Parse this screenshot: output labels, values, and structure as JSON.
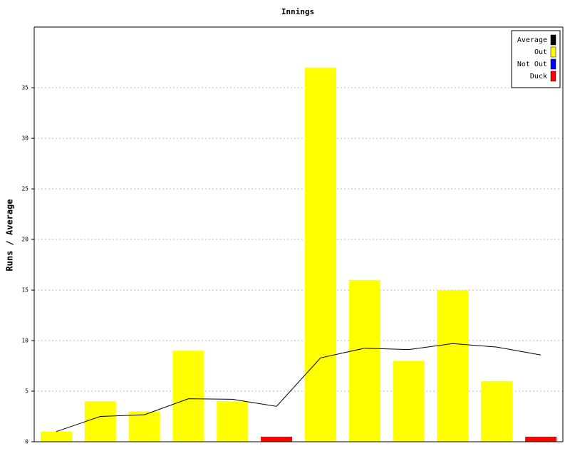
{
  "chart_data": {
    "type": "bar",
    "title": "Innings",
    "y_label": "Runs / Average",
    "categories": [
      null,
      null,
      null,
      null,
      null,
      null,
      null,
      null,
      null,
      null,
      null,
      null
    ],
    "series": [
      {
        "name": "Average",
        "type": "line",
        "color": "#000000",
        "values": [
          1,
          2.5,
          2.67,
          4.25,
          4.2,
          3.5,
          8.29,
          9.25,
          9.11,
          9.7,
          9.36,
          8.58
        ]
      },
      {
        "name": "Out",
        "type": "bar",
        "color": "#ffff00",
        "values": [
          1,
          4,
          3,
          9,
          4,
          null,
          37,
          16,
          8,
          15,
          6,
          null
        ]
      },
      {
        "name": "Not Out",
        "type": "bar",
        "color": "#0000ff",
        "values": [
          null,
          null,
          null,
          null,
          null,
          null,
          null,
          null,
          null,
          null,
          null,
          null
        ]
      },
      {
        "name": "Duck",
        "type": "bar",
        "color": "#ff0000",
        "values": [
          null,
          null,
          null,
          null,
          null,
          0.5,
          null,
          null,
          null,
          null,
          null,
          0.5
        ]
      }
    ],
    "ylim": [
      0,
      41
    ],
    "yticks": [
      0,
      5,
      10,
      15,
      20,
      25,
      30,
      35
    ],
    "grid": true,
    "legend": "top-right"
  }
}
